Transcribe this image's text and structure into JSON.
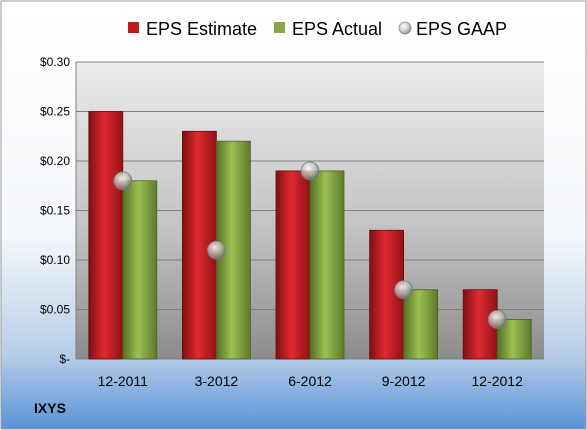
{
  "chart_data": {
    "type": "bar",
    "ticker": "IXYS",
    "categories": [
      "12-2011",
      "3-2012",
      "6-2012",
      "9-2012",
      "12-2012"
    ],
    "series": [
      {
        "name": "EPS Estimate",
        "kind": "bar",
        "color": "#c0191e",
        "values": [
          0.25,
          0.23,
          0.19,
          0.13,
          0.07
        ]
      },
      {
        "name": "EPS Actual",
        "kind": "bar",
        "color": "#86a844",
        "values": [
          0.18,
          0.22,
          0.19,
          0.07,
          0.04
        ]
      },
      {
        "name": "EPS GAAP",
        "kind": "marker",
        "color": "#b8b8b8",
        "values": [
          0.18,
          0.11,
          0.19,
          0.07,
          0.04
        ]
      }
    ],
    "ylim": [
      0,
      0.3
    ],
    "yticks": [
      0,
      0.05,
      0.1,
      0.15,
      0.2,
      0.25,
      0.3
    ],
    "ytick_labels": [
      "$-",
      "$0.05",
      "$0.10",
      "$0.15",
      "$0.20",
      "$0.25",
      "$0.30"
    ],
    "grid": true,
    "legend_position": "top"
  }
}
